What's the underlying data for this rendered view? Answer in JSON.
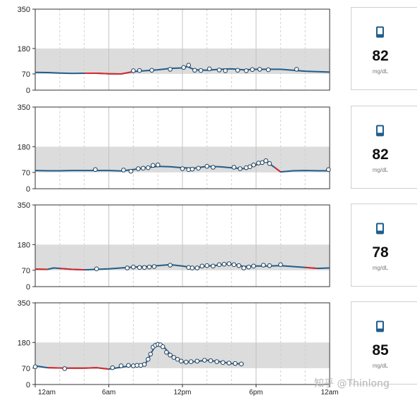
{
  "chart_data": [
    {
      "type": "line",
      "ylim": [
        0,
        350
      ],
      "yticks": [
        0,
        70,
        180,
        350
      ],
      "target_range": [
        70,
        180
      ],
      "x_range_hours": [
        0,
        24
      ],
      "series": [
        {
          "values": [
            [
              0,
              77
            ],
            [
              1,
              76
            ],
            [
              2,
              74
            ],
            [
              3,
              72
            ],
            [
              4,
              73
            ],
            [
              5,
              73
            ],
            [
              6,
              71
            ],
            [
              7,
              70
            ],
            [
              8,
              80
            ],
            [
              9,
              84
            ],
            [
              10,
              88
            ],
            [
              11,
              94
            ],
            [
              12,
              96
            ],
            [
              12.4,
              102
            ],
            [
              13,
              88
            ],
            [
              14,
              86
            ],
            [
              15,
              90
            ],
            [
              16,
              92
            ],
            [
              17,
              88
            ],
            [
              18,
              90
            ],
            [
              19,
              90
            ],
            [
              20,
              90
            ],
            [
              21,
              86
            ],
            [
              22,
              82
            ],
            [
              23,
              80
            ],
            [
              24,
              78
            ]
          ],
          "low": [
            [
              4,
              6
            ],
            [
              6.4,
              7.6
            ]
          ],
          "readings": [
            [
              8,
              84
            ],
            [
              8.5,
              85
            ],
            [
              9.5,
              86
            ],
            [
              11,
              90
            ],
            [
              12.1,
              98
            ],
            [
              12.5,
              108
            ],
            [
              13.0,
              86
            ],
            [
              13.5,
              85
            ],
            [
              14.2,
              92
            ],
            [
              15.0,
              87
            ],
            [
              15.5,
              84
            ],
            [
              16.5,
              86
            ],
            [
              17.2,
              84
            ],
            [
              17.7,
              89
            ],
            [
              18.3,
              90
            ],
            [
              19.0,
              88
            ],
            [
              21.3,
              90
            ]
          ],
          "scan": {
            "value": "82",
            "unit": "mg/dL"
          }
        }
      ]
    },
    {
      "type": "line",
      "ylim": [
        0,
        350
      ],
      "yticks": [
        0,
        70,
        180,
        350
      ],
      "target_range": [
        70,
        180
      ],
      "x_range_hours": [
        0,
        24
      ],
      "series": [
        {
          "values": [
            [
              0,
              78
            ],
            [
              1,
              77
            ],
            [
              2,
              77
            ],
            [
              3,
              78
            ],
            [
              4,
              78
            ],
            [
              5,
              78
            ],
            [
              6,
              78
            ],
            [
              7,
              76
            ],
            [
              8,
              82
            ],
            [
              9,
              90
            ],
            [
              10,
              96
            ],
            [
              11,
              94
            ],
            [
              12,
              90
            ],
            [
              13,
              88
            ],
            [
              14,
              96
            ],
            [
              15,
              94
            ],
            [
              16,
              90
            ],
            [
              17,
              86
            ],
            [
              18,
              102
            ],
            [
              18.8,
              118
            ],
            [
              19.5,
              92
            ],
            [
              20,
              72
            ],
            [
              21,
              77
            ],
            [
              22,
              78
            ],
            [
              23,
              77
            ],
            [
              24,
              77
            ]
          ],
          "low": [
            [
              19.8,
              20.4
            ]
          ],
          "readings": [
            [
              4.9,
              82
            ],
            [
              7.2,
              80
            ],
            [
              7.8,
              75
            ],
            [
              8.4,
              86
            ],
            [
              8.8,
              88
            ],
            [
              9.2,
              90
            ],
            [
              9.6,
              100
            ],
            [
              10.0,
              102
            ],
            [
              12.0,
              86
            ],
            [
              12.5,
              82
            ],
            [
              12.8,
              84
            ],
            [
              13.3,
              88
            ],
            [
              14.0,
              96
            ],
            [
              14.5,
              92
            ],
            [
              16.2,
              92
            ],
            [
              16.7,
              86
            ],
            [
              17.2,
              90
            ],
            [
              17.5,
              94
            ],
            [
              17.8,
              102
            ],
            [
              18.2,
              110
            ],
            [
              18.5,
              112
            ],
            [
              18.8,
              120
            ],
            [
              19.1,
              108
            ],
            [
              23.9,
              82
            ]
          ],
          "scan": {
            "value": "82",
            "unit": "mg/dL"
          }
        }
      ]
    },
    {
      "type": "line",
      "ylim": [
        0,
        350
      ],
      "yticks": [
        0,
        70,
        180,
        350
      ],
      "target_range": [
        70,
        180
      ],
      "x_range_hours": [
        0,
        24
      ],
      "series": [
        {
          "values": [
            [
              0,
              75
            ],
            [
              1,
              74
            ],
            [
              1.5,
              80
            ],
            [
              2,
              78
            ],
            [
              3,
              74
            ],
            [
              4,
              72
            ],
            [
              5,
              74
            ],
            [
              6,
              76
            ],
            [
              7,
              80
            ],
            [
              8,
              84
            ],
            [
              9,
              86
            ],
            [
              10,
              90
            ],
            [
              11,
              94
            ],
            [
              12,
              88
            ],
            [
              13,
              80
            ],
            [
              14,
              88
            ],
            [
              15,
              92
            ],
            [
              15.7,
              98
            ],
            [
              16.5,
              92
            ],
            [
              17,
              86
            ],
            [
              18,
              88
            ],
            [
              19,
              88
            ],
            [
              20,
              90
            ],
            [
              21,
              86
            ],
            [
              22,
              82
            ],
            [
              23,
              78
            ],
            [
              24,
              80
            ]
          ],
          "low": [
            [
              0,
              0.9
            ],
            [
              2.3,
              3.7
            ],
            [
              22.2,
              23.3
            ]
          ],
          "readings": [
            [
              5,
              76
            ],
            [
              7.5,
              80
            ],
            [
              8,
              84
            ],
            [
              8.5,
              82
            ],
            [
              8.9,
              82
            ],
            [
              9.3,
              84
            ],
            [
              9.7,
              86
            ],
            [
              11,
              92
            ],
            [
              12.5,
              82
            ],
            [
              12.8,
              80
            ],
            [
              13.2,
              80
            ],
            [
              13.6,
              88
            ],
            [
              14.0,
              90
            ],
            [
              14.5,
              88
            ],
            [
              15.0,
              94
            ],
            [
              15.4,
              96
            ],
            [
              15.8,
              98
            ],
            [
              16.2,
              94
            ],
            [
              16.6,
              90
            ],
            [
              17.0,
              80
            ],
            [
              17.4,
              84
            ],
            [
              17.8,
              88
            ],
            [
              18.6,
              92
            ],
            [
              19.1,
              90
            ],
            [
              20.0,
              94
            ]
          ],
          "scan": {
            "value": "78",
            "unit": "mg/dL"
          }
        }
      ]
    },
    {
      "type": "line",
      "ylim": [
        0,
        350
      ],
      "yticks": [
        0,
        70,
        180,
        350
      ],
      "target_range": [
        70,
        180
      ],
      "x_range_hours": [
        0,
        24
      ],
      "x_tick_labels": [
        "12am",
        "6am",
        "12pm",
        "6pm",
        "12am"
      ],
      "series": [
        {
          "values": [
            [
              0,
              80
            ],
            [
              1,
              72
            ],
            [
              2.5,
              70
            ],
            [
              4,
              70
            ],
            [
              5,
              72
            ],
            [
              6,
              66
            ],
            [
              7,
              74
            ],
            [
              8,
              82
            ],
            [
              9,
              90
            ],
            [
              9.5,
              140
            ],
            [
              9.8,
              166
            ],
            [
              10.2,
              172
            ],
            [
              10.5,
              160
            ],
            [
              11,
              130
            ],
            [
              11.5,
              110
            ],
            [
              12,
              96
            ],
            [
              13,
              98
            ],
            [
              14,
              104
            ],
            [
              15,
              98
            ],
            [
              16,
              90
            ],
            [
              17,
              88
            ]
          ],
          "low": [
            [
              1.3,
              5.8
            ]
          ],
          "readings": [
            [
              0,
              76
            ],
            [
              2.4,
              68
            ],
            [
              6.3,
              72
            ],
            [
              7.0,
              80
            ],
            [
              7.6,
              82
            ],
            [
              8.0,
              80
            ],
            [
              8.3,
              82
            ],
            [
              8.6,
              82
            ],
            [
              8.9,
              86
            ],
            [
              9.2,
              108
            ],
            [
              9.4,
              130
            ],
            [
              9.6,
              160
            ],
            [
              9.8,
              168
            ],
            [
              10.0,
              172
            ],
            [
              10.2,
              170
            ],
            [
              10.4,
              162
            ],
            [
              10.7,
              138
            ],
            [
              11.0,
              126
            ],
            [
              11.3,
              116
            ],
            [
              11.6,
              108
            ],
            [
              11.9,
              100
            ],
            [
              12.3,
              96
            ],
            [
              12.7,
              98
            ],
            [
              13.2,
              100
            ],
            [
              13.8,
              104
            ],
            [
              14.3,
              102
            ],
            [
              14.8,
              98
            ],
            [
              15.3,
              94
            ],
            [
              15.8,
              92
            ],
            [
              16.3,
              90
            ],
            [
              16.8,
              88
            ]
          ],
          "scan": {
            "value": "85",
            "unit": "mg/dL"
          }
        }
      ]
    }
  ],
  "watermark": "知乎 @Thinlong",
  "colors": {
    "line": "#1f5d8c",
    "low": "#d6282c",
    "target_band": "#dcdcdc",
    "gridline": "#bdbdbd"
  },
  "icons": {
    "scan": "phone-scan-icon"
  }
}
